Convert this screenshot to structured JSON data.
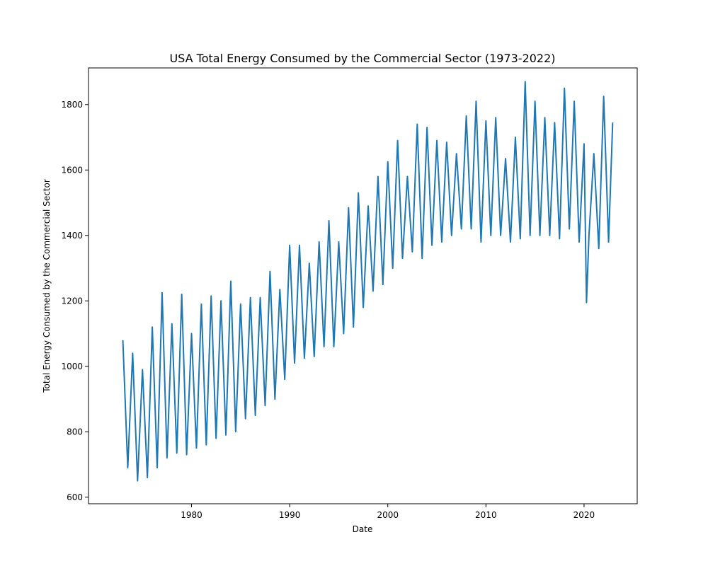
{
  "chart_data": {
    "type": "line",
    "title": "USA Total Energy Consumed by the Commercial Sector (1973-2022)",
    "xlabel": "Date",
    "ylabel": "Total Energy Consumed by the Commercial Sector",
    "xlim": [
      "1969-07-01",
      "2025-06-01"
    ],
    "ylim": [
      580,
      1912
    ],
    "x_ticks": [
      1980,
      1990,
      2000,
      2010,
      2020
    ],
    "y_ticks": [
      600,
      800,
      1000,
      1200,
      1400,
      1600,
      1800
    ],
    "grid": false,
    "legend": "none",
    "series": [
      {
        "color": "#1f77b4",
        "x": [
          "1973-01",
          "1973-07",
          "1974-01",
          "1974-07",
          "1975-01",
          "1975-07",
          "1976-01",
          "1976-07",
          "1977-01",
          "1977-07",
          "1978-01",
          "1978-07",
          "1979-01",
          "1979-07",
          "1980-01",
          "1980-07",
          "1981-01",
          "1981-07",
          "1982-01",
          "1982-07",
          "1983-01",
          "1983-07",
          "1984-01",
          "1984-07",
          "1985-01",
          "1985-07",
          "1986-01",
          "1986-07",
          "1987-01",
          "1987-07",
          "1988-01",
          "1988-07",
          "1989-01",
          "1989-07",
          "1990-01",
          "1990-07",
          "1991-01",
          "1991-07",
          "1992-01",
          "1992-07",
          "1993-01",
          "1993-07",
          "1994-01",
          "1994-07",
          "1995-01",
          "1995-07",
          "1996-01",
          "1996-07",
          "1997-01",
          "1997-07",
          "1998-01",
          "1998-07",
          "1999-01",
          "1999-07",
          "2000-01",
          "2000-07",
          "2001-01",
          "2001-07",
          "2002-01",
          "2002-07",
          "2003-01",
          "2003-07",
          "2004-01",
          "2004-07",
          "2005-01",
          "2005-07",
          "2006-01",
          "2006-07",
          "2007-01",
          "2007-07",
          "2008-01",
          "2008-07",
          "2009-01",
          "2009-07",
          "2010-01",
          "2010-07",
          "2011-01",
          "2011-07",
          "2012-01",
          "2012-07",
          "2013-01",
          "2013-07",
          "2014-01",
          "2014-07",
          "2015-01",
          "2015-07",
          "2016-01",
          "2016-07",
          "2017-01",
          "2017-07",
          "2018-01",
          "2018-07",
          "2019-01",
          "2019-07",
          "2020-01",
          "2020-04",
          "2020-07",
          "2021-01",
          "2021-07",
          "2022-01",
          "2022-07",
          "2022-12"
        ],
        "y": [
          1080,
          690,
          1040,
          650,
          990,
          660,
          1120,
          690,
          1225,
          720,
          1130,
          735,
          1220,
          730,
          1100,
          750,
          1190,
          760,
          1215,
          780,
          1200,
          790,
          1260,
          800,
          1190,
          840,
          1210,
          850,
          1210,
          880,
          1290,
          900,
          1235,
          960,
          1370,
          1010,
          1370,
          1025,
          1315,
          1030,
          1380,
          1060,
          1445,
          1060,
          1380,
          1100,
          1485,
          1120,
          1530,
          1180,
          1490,
          1230,
          1580,
          1250,
          1625,
          1300,
          1690,
          1330,
          1580,
          1350,
          1740,
          1330,
          1730,
          1370,
          1690,
          1380,
          1685,
          1400,
          1650,
          1420,
          1765,
          1420,
          1810,
          1380,
          1750,
          1400,
          1760,
          1400,
          1635,
          1380,
          1700,
          1390,
          1870,
          1400,
          1810,
          1400,
          1760,
          1400,
          1745,
          1390,
          1850,
          1420,
          1810,
          1380,
          1680,
          1195,
          1400,
          1650,
          1360,
          1825,
          1380,
          1745
        ]
      }
    ]
  }
}
